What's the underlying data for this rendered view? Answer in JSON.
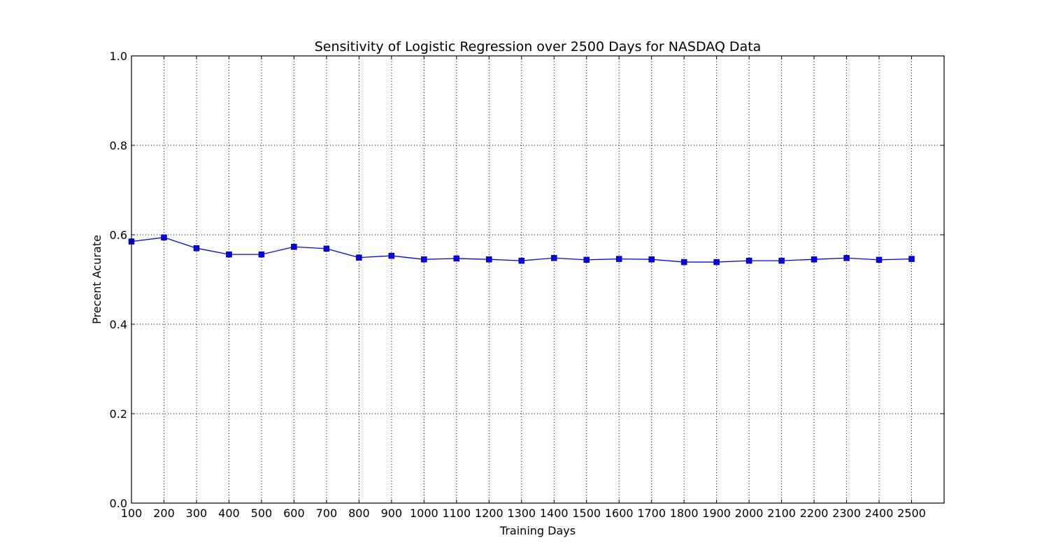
{
  "chart_data": {
    "type": "line",
    "title": "Sensitivity of Logistic Regression over 2500 Days for NASDAQ Data",
    "xlabel": "Training Days",
    "ylabel": "Precent Acurate",
    "xlim": [
      100,
      2600
    ],
    "ylim": [
      0.0,
      1.0
    ],
    "x_ticks": [
      100,
      200,
      300,
      400,
      500,
      600,
      700,
      800,
      900,
      1000,
      1100,
      1200,
      1300,
      1400,
      1500,
      1600,
      1700,
      1800,
      1900,
      2000,
      2100,
      2200,
      2300,
      2400,
      2500
    ],
    "x_tick_labels": [
      "100",
      "200",
      "300",
      "400",
      "500",
      "600",
      "700",
      "800",
      "900",
      "1000",
      "1100",
      "1200",
      "1300",
      "1400",
      "1500",
      "1600",
      "1700",
      "1800",
      "1900",
      "2000",
      "2100",
      "2200",
      "2300",
      "2400",
      "2500"
    ],
    "y_ticks": [
      0.0,
      0.2,
      0.4,
      0.6,
      0.8,
      1.0
    ],
    "y_tick_labels": [
      "0.0",
      "0.2",
      "0.4",
      "0.6",
      "0.8",
      "1.0"
    ],
    "grid": true,
    "series": [
      {
        "color": "#0000ff",
        "marker": "square",
        "x": [
          100,
          200,
          300,
          400,
          500,
          600,
          700,
          800,
          900,
          1000,
          1100,
          1200,
          1300,
          1400,
          1500,
          1600,
          1700,
          1800,
          1900,
          2000,
          2100,
          2200,
          2300,
          2400,
          2500
        ],
        "values": [
          0.585,
          0.594,
          0.57,
          0.556,
          0.556,
          0.573,
          0.569,
          0.549,
          0.553,
          0.545,
          0.547,
          0.545,
          0.542,
          0.548,
          0.544,
          0.546,
          0.545,
          0.539,
          0.539,
          0.542,
          0.542,
          0.545,
          0.548,
          0.544,
          0.546
        ]
      }
    ]
  }
}
